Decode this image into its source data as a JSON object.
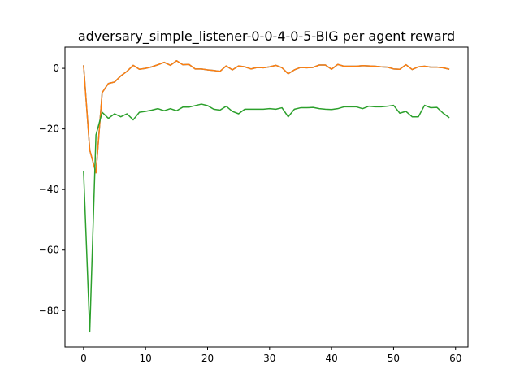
{
  "chart_data": {
    "type": "line",
    "title": "adversary_simple_listener-0-0-4-0-5-BIG per agent reward",
    "xlabel": "",
    "ylabel": "",
    "xlim": [
      -3,
      62
    ],
    "ylim": [
      -92,
      7
    ],
    "xticks": [
      0,
      10,
      20,
      30,
      40,
      50,
      60
    ],
    "yticks": [
      0,
      -20,
      -40,
      -60,
      -80
    ],
    "ytick_labels": [
      "0",
      "−20",
      "−40",
      "−60",
      "−80"
    ],
    "grid": false,
    "x": [
      0,
      1,
      2,
      3,
      4,
      5,
      6,
      7,
      8,
      9,
      10,
      11,
      12,
      13,
      14,
      15,
      16,
      17,
      18,
      19,
      20,
      21,
      22,
      23,
      24,
      25,
      26,
      27,
      28,
      29,
      30,
      31,
      32,
      33,
      34,
      35,
      36,
      37,
      38,
      39,
      40,
      41,
      42,
      43,
      44,
      45,
      46,
      47,
      48,
      49,
      50,
      51,
      52,
      53,
      54,
      55,
      56,
      57,
      58,
      59
    ],
    "series": [
      {
        "color": "#1f77b4",
        "values": [
          1,
          -27,
          -34.5,
          -8,
          -5,
          -4.5,
          -2.5,
          -1,
          1,
          -0.3,
          0,
          0.5,
          1.2,
          2,
          1,
          2.5,
          1.2,
          1.3,
          -0.2,
          -0.2,
          -0.5,
          -0.7,
          -1,
          0.8,
          -0.5,
          0.8,
          0.5,
          -0.2,
          0.3,
          0.2,
          0.5,
          1,
          0.2,
          -1.8,
          -0.5,
          0.3,
          0.2,
          0.3,
          1.1,
          1.1,
          -0.3,
          1.3,
          0.7,
          0.7,
          0.7,
          0.9,
          0.8,
          0.7,
          0.5,
          0.4,
          -0.2,
          -0.3,
          1.2,
          -0.4,
          0.5,
          0.7,
          0.4,
          0.4,
          0.2,
          -0.3
        ]
      },
      {
        "color": "#ff7f0e",
        "values": [
          1,
          -27,
          -34.5,
          -8,
          -5,
          -4.5,
          -2.5,
          -1,
          1,
          -0.3,
          0,
          0.5,
          1.2,
          2,
          1,
          2.5,
          1.2,
          1.3,
          -0.2,
          -0.2,
          -0.5,
          -0.7,
          -1,
          0.8,
          -0.5,
          0.8,
          0.5,
          -0.2,
          0.3,
          0.2,
          0.5,
          1,
          0.2,
          -1.8,
          -0.5,
          0.3,
          0.2,
          0.3,
          1.1,
          1.1,
          -0.3,
          1.3,
          0.7,
          0.7,
          0.7,
          0.9,
          0.8,
          0.7,
          0.5,
          0.4,
          -0.2,
          -0.3,
          1.2,
          -0.4,
          0.5,
          0.7,
          0.4,
          0.4,
          0.2,
          -0.3
        ]
      },
      {
        "color": "#2ca02c",
        "values": [
          -34,
          -87,
          -22,
          -14.5,
          -16.5,
          -15,
          -16,
          -15,
          -17,
          -14.5,
          -14.2,
          -13.8,
          -13.3,
          -14,
          -13.3,
          -14,
          -12.8,
          -12.8,
          -12.3,
          -11.8,
          -12.3,
          -13.5,
          -13.8,
          -12.5,
          -14.2,
          -15,
          -13.5,
          -13.5,
          -13.5,
          -13.5,
          -13.3,
          -13.5,
          -13,
          -16,
          -13.5,
          -13,
          -13,
          -12.9,
          -13.3,
          -13.5,
          -13.6,
          -13.3,
          -12.7,
          -12.7,
          -12.7,
          -13.3,
          -12.5,
          -12.7,
          -12.7,
          -12.5,
          -12.2,
          -14.8,
          -14.2,
          -16,
          -16,
          -12.2,
          -13,
          -12.9,
          -14.8,
          -16.3
        ]
      }
    ]
  }
}
